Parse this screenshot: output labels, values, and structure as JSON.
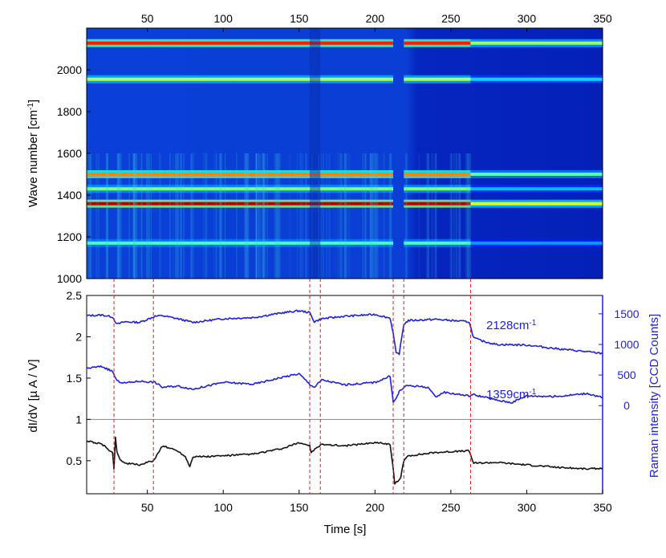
{
  "chart_data": [
    {
      "type": "heatmap",
      "title": "",
      "xlabel": "",
      "ylabel": "Wave number [cm",
      "ylabel_sup": "-1",
      "ylabel_end": "]",
      "xlim": [
        10,
        350
      ],
      "ylim": [
        1000,
        2200
      ],
      "x_ticks": [
        "50",
        "100",
        "150",
        "200",
        "250",
        "300",
        "350"
      ],
      "y_ticks": [
        "1000",
        "1200",
        "1400",
        "1600",
        "1800",
        "2000"
      ],
      "colormap": "jet",
      "bands": [
        {
          "wavenumber": 2128,
          "intensity": 0.85
        },
        {
          "wavenumber": 1955,
          "intensity": 0.55
        },
        {
          "wavenumber": 1500,
          "intensity": 0.75
        },
        {
          "wavenumber": 1430,
          "intensity": 0.5
        },
        {
          "wavenumber": 1359,
          "intensity": 0.95
        },
        {
          "wavenumber": 1170,
          "intensity": 0.45
        }
      ]
    },
    {
      "type": "line",
      "xlabel": "Time [s]",
      "ylabel": "dI/dV [µ A / V]",
      "ylabel_right": "Raman intensity [CCD Counts]",
      "xlim": [
        10,
        350
      ],
      "ylim": [
        0.1,
        2.5
      ],
      "ylim_right": [
        -1440,
        1800
      ],
      "x_ticks": [
        "50",
        "100",
        "150",
        "200",
        "250",
        "300",
        "350"
      ],
      "y_ticks": [
        "0.5",
        "1",
        "1.5",
        "2",
        "2.5"
      ],
      "y_ticks_right": [
        "0",
        "500",
        "1000",
        "1500"
      ],
      "reference_line_y": 1,
      "event_times": [
        28,
        54,
        157,
        164,
        212,
        219,
        263
      ],
      "series": [
        {
          "name": "2128cm",
          "name_sup": "-1",
          "axis": "right",
          "color": "#1f1fd6",
          "x": [
            10,
            20,
            27,
            30,
            35,
            45,
            55,
            60,
            70,
            80,
            100,
            120,
            140,
            150,
            157,
            160,
            165,
            180,
            200,
            210,
            212,
            214,
            216,
            219,
            222,
            240,
            262,
            265,
            270,
            280,
            300,
            320,
            340,
            350
          ],
          "values": [
            1470,
            1480,
            1450,
            1330,
            1370,
            1360,
            1460,
            1470,
            1420,
            1360,
            1420,
            1440,
            1520,
            1550,
            1520,
            1370,
            1420,
            1460,
            1490,
            1430,
            1180,
            850,
            850,
            1330,
            1390,
            1410,
            1370,
            1110,
            1060,
            1000,
            990,
            930,
            880,
            850
          ]
        },
        {
          "name": "1359cm",
          "name_sup": "-1",
          "axis": "right",
          "color": "#1f1fd6",
          "x": [
            10,
            20,
            27,
            30,
            35,
            45,
            55,
            60,
            70,
            80,
            100,
            120,
            140,
            150,
            157,
            160,
            165,
            180,
            200,
            210,
            212,
            214,
            216,
            219,
            222,
            235,
            240,
            245,
            262,
            265,
            280,
            290,
            300,
            320,
            340,
            350
          ],
          "values": [
            610,
            640,
            560,
            400,
            370,
            400,
            380,
            300,
            320,
            270,
            380,
            350,
            470,
            520,
            350,
            300,
            420,
            340,
            380,
            480,
            50,
            120,
            230,
            300,
            330,
            300,
            130,
            220,
            160,
            180,
            90,
            50,
            160,
            150,
            200,
            130
          ]
        },
        {
          "name": "",
          "axis": "left",
          "color": "#111111",
          "x": [
            10,
            20,
            27,
            28,
            29,
            30,
            32,
            35,
            45,
            54,
            60,
            70,
            75,
            78,
            80,
            90,
            100,
            120,
            140,
            150,
            157,
            158,
            165,
            180,
            200,
            210,
            212,
            213,
            215,
            217,
            219,
            222,
            240,
            262,
            265,
            280,
            300,
            320,
            340,
            350
          ],
          "values": [
            0.74,
            0.7,
            0.6,
            0.4,
            0.78,
            0.6,
            0.52,
            0.47,
            0.45,
            0.5,
            0.68,
            0.62,
            0.55,
            0.43,
            0.55,
            0.55,
            0.56,
            0.58,
            0.65,
            0.72,
            0.68,
            0.6,
            0.7,
            0.68,
            0.72,
            0.7,
            0.4,
            0.22,
            0.25,
            0.3,
            0.5,
            0.56,
            0.6,
            0.62,
            0.47,
            0.48,
            0.45,
            0.42,
            0.4,
            0.41
          ]
        }
      ]
    }
  ]
}
